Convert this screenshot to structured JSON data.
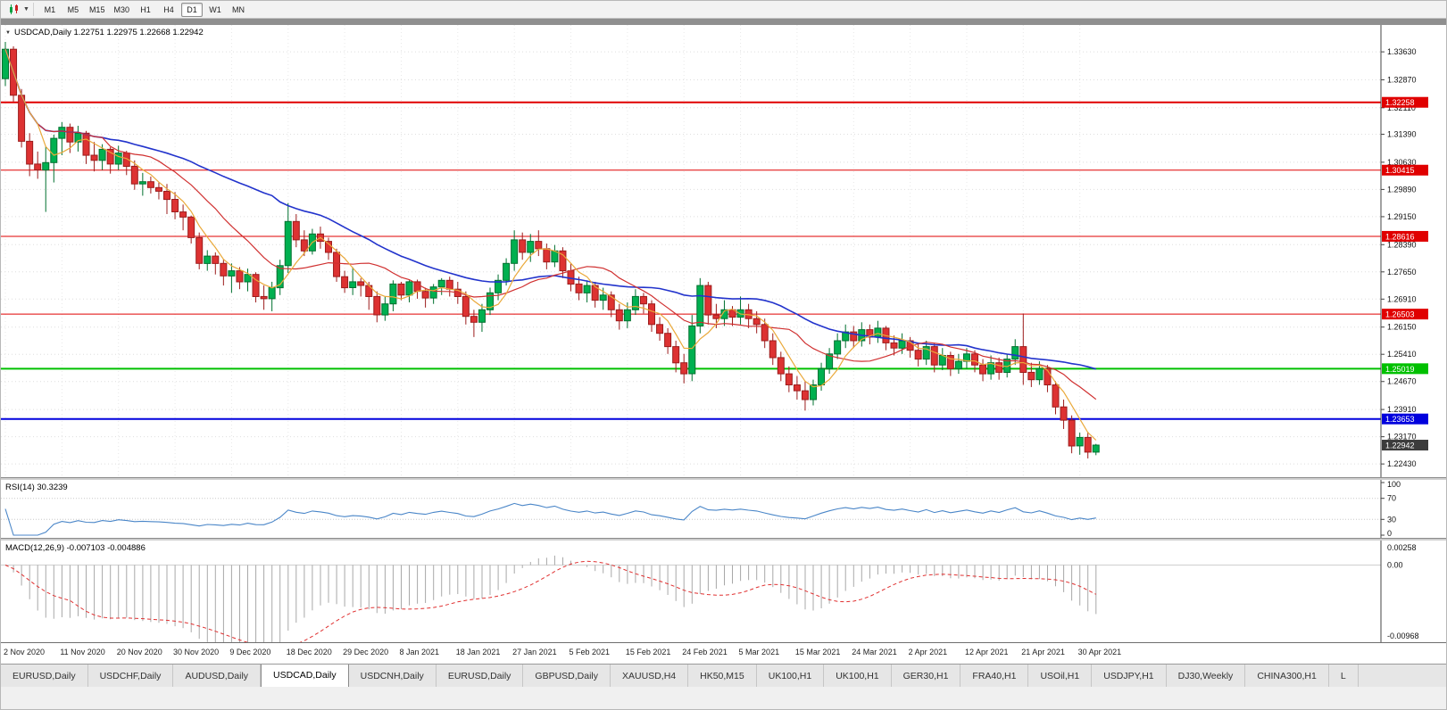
{
  "icons": {
    "collapse": "▼",
    "caret": "▼"
  },
  "toolbar": {
    "timeframes": [
      "M1",
      "M5",
      "M15",
      "M30",
      "H1",
      "H4",
      "D1",
      "W1",
      "MN"
    ],
    "active": "D1"
  },
  "chart_data": {
    "type": "candlestick",
    "symbol": "USDCAD",
    "timeframe": "Daily",
    "title_text": "USDCAD,Daily 1.22751 1.22975 1.22668 1.22942",
    "ohlc_current": {
      "open": "1.22751",
      "high": "1.22975",
      "low": "1.22668",
      "close": "1.22942"
    },
    "y_range": [
      1.2207,
      1.3436
    ],
    "y_ticks": [
      "1.33630",
      "1.32870",
      "1.32110",
      "1.31390",
      "1.30630",
      "1.29890",
      "1.29150",
      "1.28390",
      "1.27650",
      "1.26910",
      "1.26150",
      "1.25410",
      "1.24670",
      "1.23910",
      "1.23170",
      "1.22430"
    ],
    "x_labels": [
      {
        "pos": 0,
        "text": "2 Nov 2020"
      },
      {
        "pos": 7,
        "text": "11 Nov 2020"
      },
      {
        "pos": 14,
        "text": "20 Nov 2020"
      },
      {
        "pos": 21,
        "text": "30 Nov 2020"
      },
      {
        "pos": 28,
        "text": "9 Dec 2020"
      },
      {
        "pos": 35,
        "text": "18 Dec 2020"
      },
      {
        "pos": 42,
        "text": "29 Dec 2020"
      },
      {
        "pos": 49,
        "text": "8 Jan 2021"
      },
      {
        "pos": 56,
        "text": "18 Jan 2021"
      },
      {
        "pos": 63,
        "text": "27 Jan 2021"
      },
      {
        "pos": 70,
        "text": "5 Feb 2021"
      },
      {
        "pos": 77,
        "text": "15 Feb 2021"
      },
      {
        "pos": 84,
        "text": "24 Feb 2021"
      },
      {
        "pos": 91,
        "text": "5 Mar 2021"
      },
      {
        "pos": 98,
        "text": "15 Mar 2021"
      },
      {
        "pos": 105,
        "text": "24 Mar 2021"
      },
      {
        "pos": 112,
        "text": "2 Apr 2021"
      },
      {
        "pos": 119,
        "text": "12 Apr 2021"
      },
      {
        "pos": 126,
        "text": "21 Apr 2021"
      },
      {
        "pos": 133,
        "text": "30 Apr 2021"
      }
    ],
    "levels": [
      {
        "price": 1.32258,
        "label": "1.32258",
        "color": "#e00000",
        "width": 2
      },
      {
        "price": 1.30415,
        "label": "1.30415",
        "color": "#e00000",
        "width": 1
      },
      {
        "price": 1.28616,
        "label": "1.28616",
        "color": "#e00000",
        "width": 1
      },
      {
        "price": 1.26503,
        "label": "1.26503",
        "color": "#e00000",
        "width": 1
      },
      {
        "price": 1.25019,
        "label": "1.25019",
        "color": "#00c000",
        "width": 2
      },
      {
        "price": 1.23653,
        "label": "1.23653",
        "color": "#0000dd",
        "width": 2
      }
    ],
    "current_price": {
      "value": 1.22942,
      "label": "1.22942",
      "color": "#3c3c3c"
    },
    "colors": {
      "up": "#00b050",
      "up_border": "#00702f",
      "down": "#dd3232",
      "down_border": "#9c1c1c"
    },
    "moving_averages": [
      {
        "period": 34,
        "color": "#2233cc",
        "width": 1.6
      },
      {
        "period": 13,
        "color": "#d03030",
        "width": 1.2
      },
      {
        "period": 5,
        "color": "#eaa93a",
        "width": 1.2
      }
    ],
    "indicators": {
      "rsi": {
        "label": "RSI(14)",
        "value": "30.3239",
        "period": 14,
        "color": "#4a86c8",
        "levels": [
          70,
          30
        ],
        "ticks": [
          "100",
          "70",
          "30",
          "0"
        ]
      },
      "macd": {
        "label": "MACD(12,26,9)",
        "values": "-0.007103 -0.004886",
        "fast": 12,
        "slow": 26,
        "signal": 9,
        "hist_color": "#a8a8a8",
        "signal_color": "#e03030",
        "range": [
          0.00258,
          -0.00968
        ],
        "ticks": [
          "0.00258",
          "0.00",
          "-0.00968"
        ]
      }
    },
    "candles": [
      [
        1.329,
        1.339,
        1.327,
        1.337
      ],
      [
        1.337,
        1.3378,
        1.3228,
        1.3245
      ],
      [
        1.3245,
        1.3262,
        1.3103,
        1.312
      ],
      [
        1.312,
        1.3142,
        1.3025,
        1.3058
      ],
      [
        1.3058,
        1.3092,
        1.3018,
        1.3042
      ],
      [
        1.3042,
        1.3105,
        1.2928,
        1.3062
      ],
      [
        1.3062,
        1.3138,
        1.3008,
        1.3128
      ],
      [
        1.3128,
        1.3172,
        1.3082,
        1.3158
      ],
      [
        1.3158,
        1.3168,
        1.3088,
        1.3118
      ],
      [
        1.3118,
        1.3162,
        1.3092,
        1.3142
      ],
      [
        1.3142,
        1.3148,
        1.3058,
        1.3082
      ],
      [
        1.3082,
        1.3118,
        1.3038,
        1.3068
      ],
      [
        1.3068,
        1.3112,
        1.3042,
        1.3098
      ],
      [
        1.3098,
        1.3104,
        1.3032,
        1.3058
      ],
      [
        1.3058,
        1.3108,
        1.3042,
        1.3088
      ],
      [
        1.3088,
        1.3094,
        1.3028,
        1.3052
      ],
      [
        1.3052,
        1.3068,
        1.2988,
        1.3004
      ],
      [
        1.3004,
        1.3034,
        1.2972,
        1.301
      ],
      [
        1.301,
        1.3024,
        1.2978,
        1.2994
      ],
      [
        1.2994,
        1.3008,
        1.2962,
        1.2984
      ],
      [
        1.2984,
        1.3004,
        1.2922,
        1.2962
      ],
      [
        1.2962,
        1.2982,
        1.2908,
        1.2928
      ],
      [
        1.2928,
        1.2948,
        1.2878,
        1.2914
      ],
      [
        1.2914,
        1.2918,
        1.2842,
        1.2858
      ],
      [
        1.2858,
        1.2872,
        1.2772,
        1.2788
      ],
      [
        1.2788,
        1.2824,
        1.2768,
        1.2808
      ],
      [
        1.2808,
        1.2818,
        1.2758,
        1.2788
      ],
      [
        1.2788,
        1.2798,
        1.2728,
        1.2754
      ],
      [
        1.2754,
        1.2788,
        1.2708,
        1.2768
      ],
      [
        1.2768,
        1.2778,
        1.2718,
        1.2738
      ],
      [
        1.2738,
        1.2774,
        1.2712,
        1.2758
      ],
      [
        1.2758,
        1.2764,
        1.2682,
        1.2698
      ],
      [
        1.2698,
        1.2728,
        1.2662,
        1.2692
      ],
      [
        1.2692,
        1.2738,
        1.2658,
        1.2722
      ],
      [
        1.2722,
        1.2798,
        1.2702,
        1.2782
      ],
      [
        1.2782,
        1.2952,
        1.2762,
        1.2902
      ],
      [
        1.2902,
        1.2922,
        1.2832,
        1.2852
      ],
      [
        1.2852,
        1.2878,
        1.2808,
        1.2822
      ],
      [
        1.2822,
        1.2882,
        1.2812,
        1.2868
      ],
      [
        1.2868,
        1.2888,
        1.2828,
        1.2848
      ],
      [
        1.2848,
        1.2858,
        1.2798,
        1.2818
      ],
      [
        1.2818,
        1.2828,
        1.2738,
        1.2752
      ],
      [
        1.2752,
        1.2768,
        1.2708,
        1.2722
      ],
      [
        1.2722,
        1.2778,
        1.2702,
        1.2738
      ],
      [
        1.2738,
        1.2748,
        1.2698,
        1.2728
      ],
      [
        1.2728,
        1.2738,
        1.2662,
        1.2698
      ],
      [
        1.2698,
        1.2712,
        1.2628,
        1.2648
      ],
      [
        1.2648,
        1.2698,
        1.2632,
        1.2678
      ],
      [
        1.2678,
        1.2742,
        1.2658,
        1.2732
      ],
      [
        1.2732,
        1.2738,
        1.2688,
        1.2702
      ],
      [
        1.2702,
        1.2742,
        1.2682,
        1.2738
      ],
      [
        1.2738,
        1.2744,
        1.2692,
        1.2712
      ],
      [
        1.2712,
        1.2722,
        1.2668,
        1.2694
      ],
      [
        1.2694,
        1.2732,
        1.2678,
        1.2724
      ],
      [
        1.2724,
        1.2748,
        1.2702,
        1.2742
      ],
      [
        1.2742,
        1.2752,
        1.2698,
        1.2718
      ],
      [
        1.2718,
        1.2738,
        1.2678,
        1.2698
      ],
      [
        1.2698,
        1.2712,
        1.2622,
        1.2644
      ],
      [
        1.2644,
        1.2662,
        1.2588,
        1.2628
      ],
      [
        1.2628,
        1.2678,
        1.2602,
        1.2662
      ],
      [
        1.2662,
        1.2722,
        1.2648,
        1.2708
      ],
      [
        1.2708,
        1.2758,
        1.2688,
        1.2742
      ],
      [
        1.2742,
        1.2802,
        1.2728,
        1.2788
      ],
      [
        1.2788,
        1.2878,
        1.2768,
        1.2852
      ],
      [
        1.2852,
        1.2872,
        1.2798,
        1.2818
      ],
      [
        1.2818,
        1.2868,
        1.2792,
        1.2848
      ],
      [
        1.2848,
        1.2878,
        1.2808,
        1.2828
      ],
      [
        1.2828,
        1.2842,
        1.2772,
        1.2792
      ],
      [
        1.2792,
        1.2838,
        1.2778,
        1.2822
      ],
      [
        1.2822,
        1.2832,
        1.2748,
        1.2768
      ],
      [
        1.2768,
        1.2788,
        1.2712,
        1.2732
      ],
      [
        1.2732,
        1.2752,
        1.2688,
        1.2708
      ],
      [
        1.2708,
        1.2742,
        1.2682,
        1.2728
      ],
      [
        1.2728,
        1.2738,
        1.2668,
        1.2688
      ],
      [
        1.2688,
        1.2722,
        1.2662,
        1.2702
      ],
      [
        1.2702,
        1.2712,
        1.2642,
        1.2662
      ],
      [
        1.2662,
        1.2678,
        1.2608,
        1.2632
      ],
      [
        1.2632,
        1.2682,
        1.2612,
        1.2662
      ],
      [
        1.2662,
        1.2718,
        1.2648,
        1.2698
      ],
      [
        1.2698,
        1.2708,
        1.2652,
        1.2678
      ],
      [
        1.2678,
        1.2688,
        1.2602,
        1.2622
      ],
      [
        1.2622,
        1.2642,
        1.2578,
        1.2598
      ],
      [
        1.2598,
        1.2612,
        1.2542,
        1.2562
      ],
      [
        1.2562,
        1.2578,
        1.2492,
        1.2518
      ],
      [
        1.2518,
        1.2542,
        1.2462,
        1.2488
      ],
      [
        1.2488,
        1.2648,
        1.2468,
        1.2618
      ],
      [
        1.2618,
        1.2748,
        1.2598,
        1.2728
      ],
      [
        1.2728,
        1.2738,
        1.2622,
        1.2648
      ],
      [
        1.2648,
        1.2678,
        1.2612,
        1.2638
      ],
      [
        1.2638,
        1.2688,
        1.2618,
        1.2662
      ],
      [
        1.2662,
        1.2672,
        1.2618,
        1.2642
      ],
      [
        1.2642,
        1.2698,
        1.2622,
        1.2662
      ],
      [
        1.2662,
        1.2678,
        1.2612,
        1.2638
      ],
      [
        1.2638,
        1.2658,
        1.2598,
        1.2622
      ],
      [
        1.2622,
        1.2638,
        1.2558,
        1.2578
      ],
      [
        1.2578,
        1.2598,
        1.2512,
        1.2532
      ],
      [
        1.2532,
        1.2548,
        1.2468,
        1.2488
      ],
      [
        1.2488,
        1.2508,
        1.2438,
        1.2458
      ],
      [
        1.2458,
        1.2482,
        1.2418,
        1.2442
      ],
      [
        1.2442,
        1.2468,
        1.2388,
        1.2418
      ],
      [
        1.2418,
        1.2472,
        1.2402,
        1.2458
      ],
      [
        1.2458,
        1.2518,
        1.2442,
        1.2502
      ],
      [
        1.2502,
        1.2558,
        1.2488,
        1.2542
      ],
      [
        1.2542,
        1.2598,
        1.2528,
        1.2578
      ],
      [
        1.2578,
        1.2622,
        1.2558,
        1.2602
      ],
      [
        1.2602,
        1.2618,
        1.2558,
        1.2578
      ],
      [
        1.2578,
        1.2628,
        1.2562,
        1.2608
      ],
      [
        1.2608,
        1.2622,
        1.2568,
        1.2588
      ],
      [
        1.2588,
        1.2632,
        1.2572,
        1.2612
      ],
      [
        1.2612,
        1.2618,
        1.2552,
        1.2572
      ],
      [
        1.2572,
        1.2592,
        1.2538,
        1.2558
      ],
      [
        1.2558,
        1.2598,
        1.2542,
        1.2578
      ],
      [
        1.2578,
        1.2588,
        1.2532,
        1.2552
      ],
      [
        1.2552,
        1.2572,
        1.2508,
        1.2528
      ],
      [
        1.2528,
        1.2578,
        1.2512,
        1.2562
      ],
      [
        1.2562,
        1.2572,
        1.2492,
        1.2512
      ],
      [
        1.2512,
        1.2558,
        1.2498,
        1.2538
      ],
      [
        1.2538,
        1.2548,
        1.2482,
        1.2502
      ],
      [
        1.2502,
        1.2542,
        1.2488,
        1.2522
      ],
      [
        1.2522,
        1.2558,
        1.2502,
        1.2542
      ],
      [
        1.2542,
        1.2552,
        1.2492,
        1.2512
      ],
      [
        1.2512,
        1.2528,
        1.2468,
        1.2488
      ],
      [
        1.2488,
        1.2538,
        1.2472,
        1.2518
      ],
      [
        1.2518,
        1.2532,
        1.2472,
        1.2492
      ],
      [
        1.2492,
        1.2542,
        1.2478,
        1.2528
      ],
      [
        1.2528,
        1.2582,
        1.2512,
        1.2562
      ],
      [
        1.2562,
        1.2652,
        1.2458,
        1.2492
      ],
      [
        1.2492,
        1.2518,
        1.2452,
        1.2472
      ],
      [
        1.2472,
        1.2522,
        1.2458,
        1.2502
      ],
      [
        1.2502,
        1.2512,
        1.2438,
        1.2458
      ],
      [
        1.2458,
        1.2468,
        1.2378,
        1.2398
      ],
      [
        1.2398,
        1.2418,
        1.2338,
        1.2362
      ],
      [
        1.2362,
        1.2375,
        1.2272,
        1.2292
      ],
      [
        1.2292,
        1.2328,
        1.2268,
        1.2315
      ],
      [
        1.2315,
        1.233,
        1.2258,
        1.2275
      ],
      [
        1.22751,
        1.22975,
        1.22668,
        1.22942
      ]
    ]
  },
  "tabs": {
    "active_index": 3,
    "items": [
      "EURUSD,Daily",
      "USDCHF,Daily",
      "AUDUSD,Daily",
      "USDCAD,Daily",
      "USDCNH,Daily",
      "EURUSD,Daily",
      "GBPUSD,Daily",
      "XAUUSD,H4",
      "HK50,M15",
      "UK100,H1",
      "UK100,H1",
      "GER30,H1",
      "FRA40,H1",
      "USOil,H1",
      "USDJPY,H1",
      "DJ30,Weekly",
      "CHINA300,H1",
      "L"
    ]
  }
}
